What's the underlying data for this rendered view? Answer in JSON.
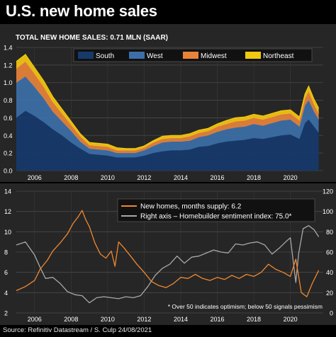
{
  "page": {
    "title": "U.S. new home sales",
    "source": "Source: Refinitiv Datastream / S. Culp 24/08/2021"
  },
  "chart_data": [
    {
      "type": "area",
      "title": "TOTAL NEW HOME SALES: 0.71 MLN (SAAR)",
      "stacked": true,
      "x": [
        2005.0,
        2005.5,
        2006.0,
        2006.5,
        2007.0,
        2007.5,
        2008.0,
        2008.5,
        2009.0,
        2009.5,
        2010.0,
        2010.5,
        2011.0,
        2011.5,
        2012.0,
        2012.5,
        2013.0,
        2013.5,
        2014.0,
        2014.5,
        2015.0,
        2015.5,
        2016.0,
        2016.5,
        2017.0,
        2017.5,
        2018.0,
        2018.5,
        2019.0,
        2019.5,
        2020.0,
        2020.5,
        2020.8,
        2021.0,
        2021.3,
        2021.55
      ],
      "series": [
        {
          "name": "South",
          "values": [
            0.6,
            0.68,
            0.62,
            0.55,
            0.47,
            0.4,
            0.32,
            0.25,
            0.19,
            0.18,
            0.17,
            0.15,
            0.15,
            0.15,
            0.17,
            0.2,
            0.22,
            0.23,
            0.23,
            0.24,
            0.27,
            0.28,
            0.31,
            0.33,
            0.34,
            0.35,
            0.37,
            0.36,
            0.38,
            0.4,
            0.41,
            0.36,
            0.54,
            0.58,
            0.5,
            0.43
          ]
        },
        {
          "name": "West",
          "values": [
            0.4,
            0.39,
            0.33,
            0.27,
            0.2,
            0.16,
            0.13,
            0.08,
            0.06,
            0.06,
            0.06,
            0.05,
            0.05,
            0.05,
            0.06,
            0.08,
            0.1,
            0.1,
            0.1,
            0.1,
            0.11,
            0.12,
            0.13,
            0.14,
            0.15,
            0.15,
            0.16,
            0.15,
            0.16,
            0.17,
            0.17,
            0.14,
            0.2,
            0.22,
            0.17,
            0.15
          ]
        },
        {
          "name": "Midwest",
          "values": [
            0.16,
            0.17,
            0.15,
            0.13,
            0.11,
            0.09,
            0.07,
            0.06,
            0.04,
            0.04,
            0.04,
            0.03,
            0.03,
            0.03,
            0.03,
            0.04,
            0.04,
            0.04,
            0.04,
            0.05,
            0.05,
            0.05,
            0.06,
            0.06,
            0.07,
            0.07,
            0.07,
            0.07,
            0.07,
            0.07,
            0.07,
            0.07,
            0.08,
            0.1,
            0.08,
            0.07
          ]
        },
        {
          "name": "Northeast",
          "values": [
            0.08,
            0.08,
            0.07,
            0.07,
            0.06,
            0.05,
            0.04,
            0.03,
            0.03,
            0.03,
            0.03,
            0.03,
            0.02,
            0.02,
            0.02,
            0.02,
            0.03,
            0.03,
            0.03,
            0.03,
            0.03,
            0.03,
            0.03,
            0.04,
            0.04,
            0.04,
            0.04,
            0.04,
            0.04,
            0.04,
            0.04,
            0.04,
            0.05,
            0.06,
            0.06,
            0.06
          ]
        }
      ],
      "xlim": [
        2005.0,
        2021.8
      ],
      "ylim": [
        0.0,
        1.4
      ],
      "yticks": [
        0.0,
        0.2,
        0.4,
        0.6,
        0.8,
        1.0,
        1.2,
        1.4
      ],
      "xticks": [
        2006,
        2008,
        2010,
        2012,
        2014,
        2016,
        2018,
        2020
      ],
      "grid": true,
      "legend": "top",
      "colors": {
        "South": "#163a6b",
        "West": "#3c6fa8",
        "Midwest": "#e8833a",
        "Northeast": "#f2c811"
      }
    },
    {
      "type": "line",
      "series": [
        {
          "name": "New homes, months supply: 6.2",
          "axis": "left",
          "color": "#f0882f",
          "x": [
            2005.0,
            2005.5,
            2006.0,
            2006.3,
            2006.7,
            2007.0,
            2007.4,
            2007.8,
            2008.1,
            2008.4,
            2008.6,
            2008.8,
            2009.0,
            2009.3,
            2009.6,
            2009.9,
            2010.2,
            2010.4,
            2010.6,
            2010.9,
            2011.3,
            2011.6,
            2012.0,
            2012.4,
            2012.8,
            2013.2,
            2013.6,
            2014.0,
            2014.4,
            2014.8,
            2015.2,
            2015.6,
            2016.0,
            2016.4,
            2016.8,
            2017.2,
            2017.6,
            2018.0,
            2018.4,
            2018.8,
            2019.2,
            2019.6,
            2020.0,
            2020.3,
            2020.6,
            2020.9,
            2021.2,
            2021.55
          ],
          "values": [
            4.2,
            4.6,
            5.2,
            6.3,
            7.2,
            8.1,
            8.9,
            9.8,
            10.8,
            11.5,
            12.1,
            11.2,
            10.5,
            8.9,
            7.8,
            7.4,
            8.1,
            6.6,
            9.0,
            8.4,
            7.5,
            6.8,
            6.0,
            5.1,
            4.7,
            4.5,
            4.9,
            5.5,
            5.4,
            5.8,
            5.4,
            5.2,
            5.5,
            5.3,
            5.7,
            5.4,
            5.8,
            5.6,
            6.0,
            6.8,
            6.3,
            6.0,
            5.6,
            7.3,
            4.0,
            3.6,
            4.9,
            6.2
          ]
        },
        {
          "name": "Right axis – Homebuilder sentiment index: 75.0*",
          "axis": "right",
          "color": "#a8a8a8",
          "x": [
            2005.0,
            2005.5,
            2006.0,
            2006.3,
            2006.6,
            2007.0,
            2007.4,
            2007.8,
            2008.2,
            2008.6,
            2009.0,
            2009.4,
            2009.8,
            2010.2,
            2010.6,
            2011.0,
            2011.4,
            2011.8,
            2012.2,
            2012.6,
            2013.0,
            2013.4,
            2013.8,
            2014.2,
            2014.6,
            2015.0,
            2015.4,
            2015.8,
            2016.2,
            2016.6,
            2017.0,
            2017.4,
            2017.8,
            2018.2,
            2018.6,
            2019.0,
            2019.4,
            2019.8,
            2020.0,
            2020.3,
            2020.45,
            2020.7,
            2021.0,
            2021.3,
            2021.55
          ],
          "values": [
            67,
            70,
            57,
            45,
            34,
            35,
            29,
            21,
            18,
            17,
            10,
            15,
            16,
            15,
            14,
            16,
            15,
            17,
            26,
            37,
            44,
            48,
            56,
            49,
            55,
            56,
            59,
            62,
            60,
            59,
            68,
            67,
            69,
            70,
            67,
            58,
            64,
            71,
            74,
            30,
            58,
            83,
            86,
            82,
            75
          ]
        }
      ],
      "xlim": [
        2005.0,
        2021.8
      ],
      "ylim": [
        2,
        14
      ],
      "yticks": [
        2,
        4,
        6,
        8,
        10,
        12,
        14
      ],
      "ylim_right": [
        0,
        120
      ],
      "yticks_right": [
        0,
        20,
        40,
        60,
        80,
        100,
        120
      ],
      "xticks": [
        2006,
        2008,
        2010,
        2012,
        2014,
        2016,
        2018,
        2020
      ],
      "grid": true,
      "legend": "top-right",
      "annotation": "* Over 50 indicates optimism; below 50 signals pessimism"
    }
  ]
}
